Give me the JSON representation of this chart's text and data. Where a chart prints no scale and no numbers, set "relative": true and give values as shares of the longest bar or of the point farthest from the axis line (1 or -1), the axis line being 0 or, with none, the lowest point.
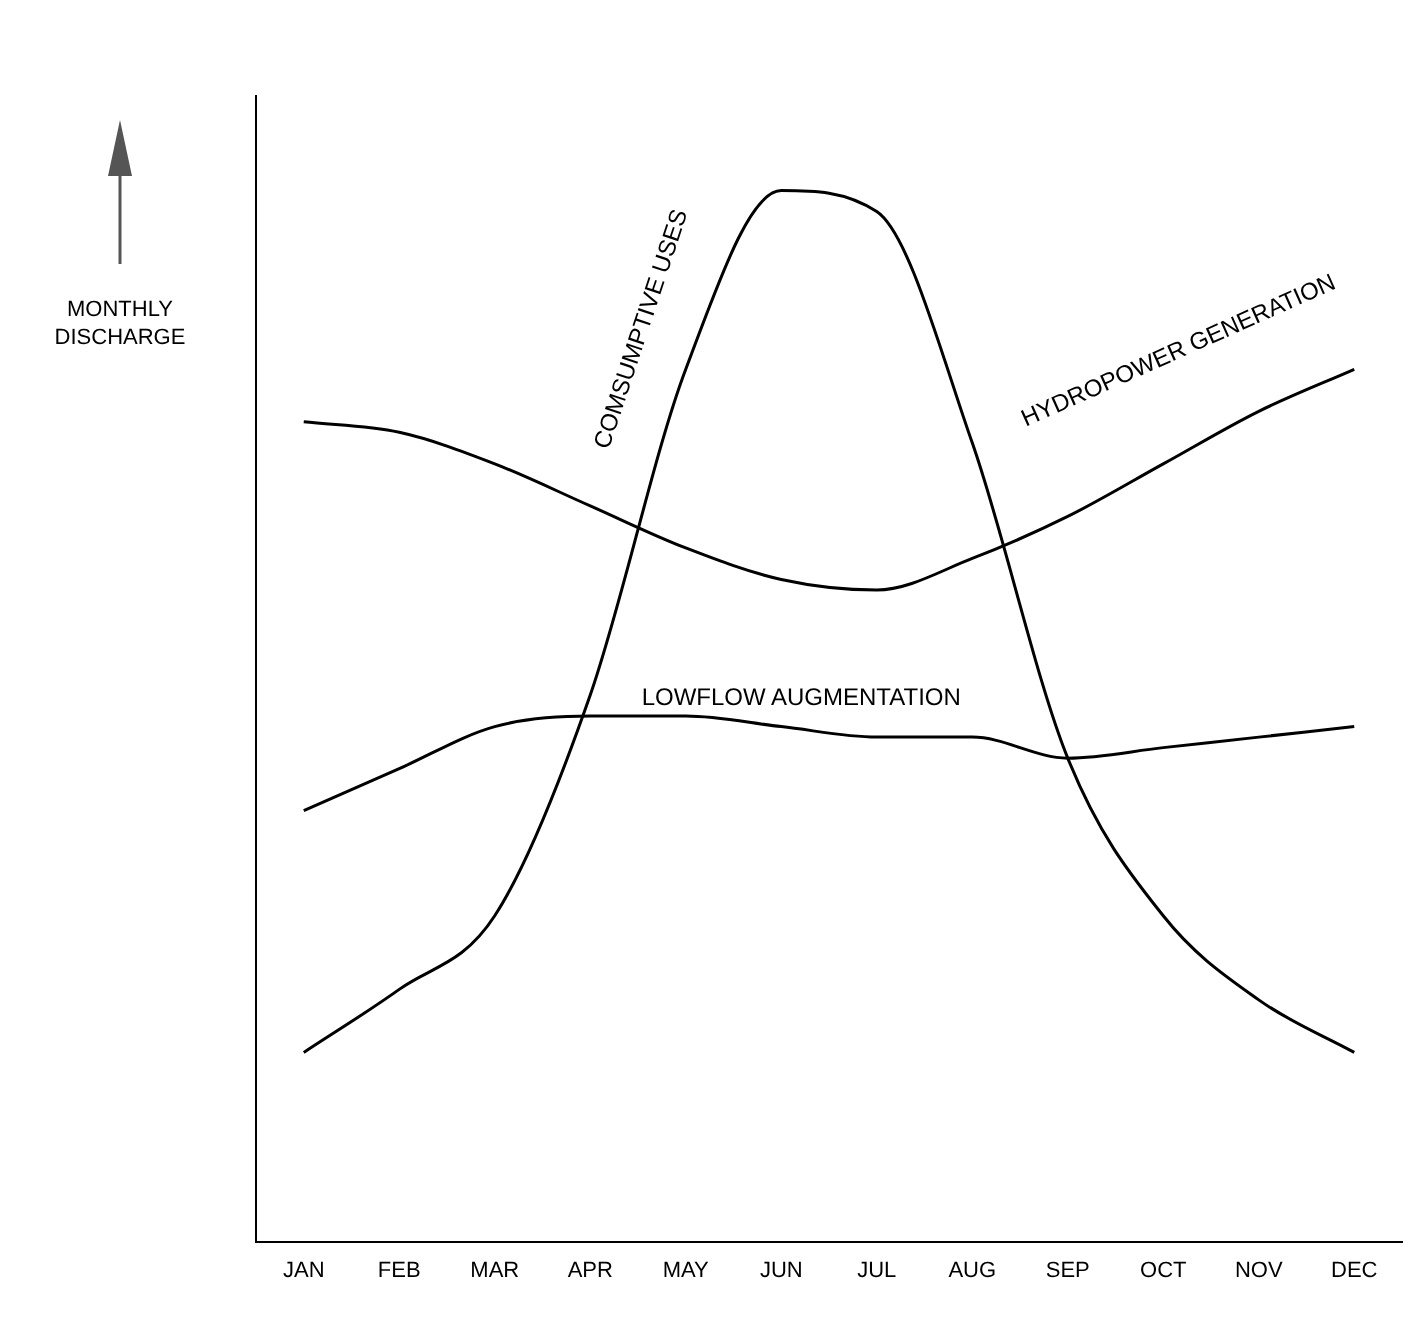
{
  "chart_data": {
    "type": "line",
    "ylabel": "MONTHLY DISCHARGE",
    "relative": true,
    "categories": [
      "JAN",
      "FEB",
      "MAR",
      "APR",
      "MAY",
      "JUN",
      "JUL",
      "AUG",
      "SEP",
      "OCT",
      "NOV",
      "DEC"
    ],
    "series": [
      {
        "name": "COMSUMPTIVE USES",
        "color": "#000000",
        "values": [
          0.18,
          0.24,
          0.31,
          0.52,
          0.83,
          1,
          0.98,
          0.76,
          0.46,
          0.31,
          0.23,
          0.18
        ]
      },
      {
        "name": "HYDROPOWER GENERATION",
        "color": "#000000",
        "values": [
          0.78,
          0.77,
          0.74,
          0.7,
          0.66,
          0.63,
          0.62,
          0.65,
          0.69,
          0.74,
          0.79,
          0.83
        ]
      },
      {
        "name": "LOWFLOW AUGMENTATION",
        "color": "#000000",
        "values": [
          0.41,
          0.45,
          0.49,
          0.5,
          0.5,
          0.49,
          0.48,
          0.48,
          0.46,
          0.47,
          0.48,
          0.49
        ]
      }
    ],
    "grid": false,
    "legend": false,
    "marker": "none",
    "line_style": "solid"
  }
}
